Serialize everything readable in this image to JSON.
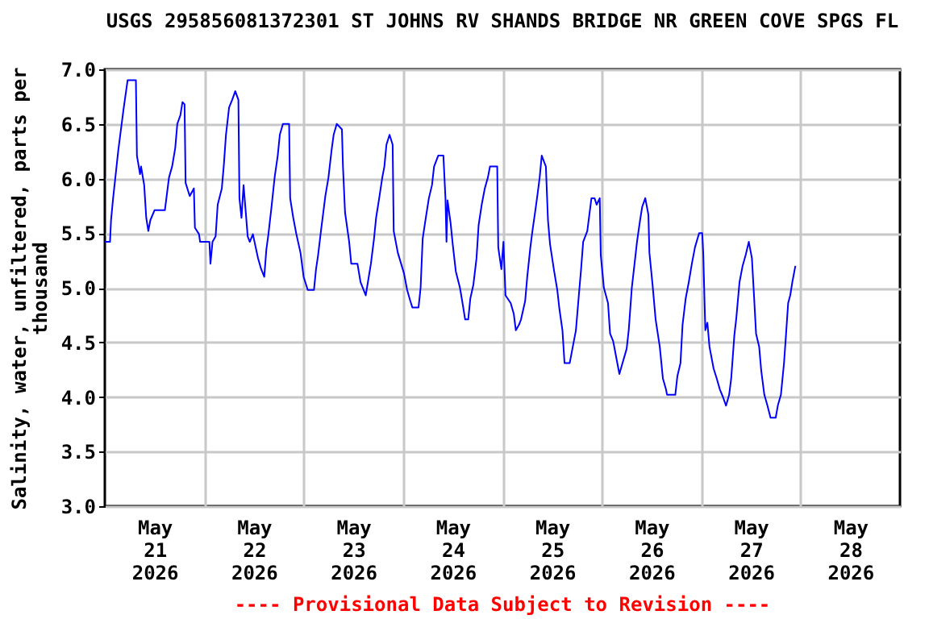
{
  "chart_data": {
    "type": "line",
    "title": "USGS 295856081372301 ST JOHNS RV SHANDS BRIDGE NR GREEN COVE SPGS FL",
    "ylabel": "Salinity, water, unfiltered, parts per thousand",
    "annotations": [
      "---- Provisional Data Subject to Revision ----"
    ],
    "x": [
      "2026-05-21T00:00",
      "2026-05-21T01:15",
      "2026-05-21T01:30",
      "2026-05-21T02:00",
      "2026-05-21T03:15",
      "2026-05-21T04:30",
      "2026-05-21T05:30",
      "2026-05-21T07:30",
      "2026-05-21T07:45",
      "2026-05-21T08:30",
      "2026-05-21T08:45",
      "2026-05-21T09:30",
      "2026-05-21T10:00",
      "2026-05-21T10:30",
      "2026-05-21T11:00",
      "2026-05-21T12:00",
      "2026-05-21T14:30",
      "2026-05-21T15:00",
      "2026-05-21T15:30",
      "2026-05-21T16:15",
      "2026-05-21T17:00",
      "2026-05-21T17:30",
      "2026-05-21T18:15",
      "2026-05-21T18:45",
      "2026-05-21T19:15",
      "2026-05-21T19:30",
      "2026-05-21T20:30",
      "2026-05-21T21:30",
      "2026-05-21T21:45",
      "2026-05-21T22:45",
      "2026-05-21T23:00",
      "2026-05-22T01:15",
      "2026-05-22T01:30",
      "2026-05-22T02:00",
      "2026-05-22T02:45",
      "2026-05-22T03:15",
      "2026-05-22T04:15",
      "2026-05-22T04:45",
      "2026-05-22T05:15",
      "2026-05-22T06:00",
      "2026-05-22T06:45",
      "2026-05-22T07:30",
      "2026-05-22T08:15",
      "2026-05-22T08:30",
      "2026-05-22T09:00",
      "2026-05-22T09:30",
      "2026-05-22T10:30",
      "2026-05-22T11:00",
      "2026-05-22T11:45",
      "2026-05-22T13:00",
      "2026-05-22T13:45",
      "2026-05-22T14:30",
      "2026-05-22T15:00",
      "2026-05-22T15:30",
      "2026-05-22T16:15",
      "2026-05-22T17:00",
      "2026-05-22T17:45",
      "2026-05-22T18:15",
      "2026-05-22T19:00",
      "2026-05-22T20:30",
      "2026-05-22T20:45",
      "2026-05-22T21:30",
      "2026-05-22T22:15",
      "2026-05-22T23:15",
      "2026-05-23T00:00",
      "2026-05-23T01:00",
      "2026-05-23T02:30",
      "2026-05-23T03:00",
      "2026-05-23T03:30",
      "2026-05-23T04:15",
      "2026-05-23T05:15",
      "2026-05-23T06:00",
      "2026-05-23T06:45",
      "2026-05-23T07:15",
      "2026-05-23T08:00",
      "2026-05-23T09:15",
      "2026-05-23T09:30",
      "2026-05-23T10:00",
      "2026-05-23T11:00",
      "2026-05-23T11:30",
      "2026-05-23T13:00",
      "2026-05-23T13:45",
      "2026-05-23T15:00",
      "2026-05-23T16:15",
      "2026-05-23T17:00",
      "2026-05-23T17:30",
      "2026-05-23T18:15",
      "2026-05-23T19:00",
      "2026-05-23T19:30",
      "2026-05-23T20:00",
      "2026-05-23T20:45",
      "2026-05-23T21:30",
      "2026-05-23T21:45",
      "2026-05-23T22:45",
      "2026-05-24T00:15",
      "2026-05-24T01:00",
      "2026-05-24T01:45",
      "2026-05-24T02:15",
      "2026-05-24T03:45",
      "2026-05-24T04:15",
      "2026-05-24T04:45",
      "2026-05-24T05:30",
      "2026-05-24T06:15",
      "2026-05-24T07:00",
      "2026-05-24T07:30",
      "2026-05-24T08:30",
      "2026-05-24T09:45",
      "2026-05-24T10:15",
      "2026-05-24T10:30",
      "2026-05-24T10:45",
      "2026-05-24T11:30",
      "2026-05-24T12:00",
      "2026-05-24T12:45",
      "2026-05-24T13:45",
      "2026-05-24T14:30",
      "2026-05-24T15:00",
      "2026-05-24T15:45",
      "2026-05-24T16:15",
      "2026-05-24T17:00",
      "2026-05-24T17:45",
      "2026-05-24T18:15",
      "2026-05-24T19:00",
      "2026-05-24T19:45",
      "2026-05-24T20:30",
      "2026-05-24T21:00",
      "2026-05-24T22:45",
      "2026-05-24T23:00",
      "2026-05-24T23:45",
      "2026-05-25T00:15",
      "2026-05-25T00:45",
      "2026-05-25T02:00",
      "2026-05-25T02:45",
      "2026-05-25T03:15",
      "2026-05-25T04:00",
      "2026-05-25T04:30",
      "2026-05-25T05:30",
      "2026-05-25T06:00",
      "2026-05-25T06:45",
      "2026-05-25T07:15",
      "2026-05-25T08:00",
      "2026-05-25T08:30",
      "2026-05-25T09:00",
      "2026-05-25T09:30",
      "2026-05-25T10:30",
      "2026-05-25T11:00",
      "2026-05-25T11:30",
      "2026-05-25T12:30",
      "2026-05-25T13:15",
      "2026-05-25T13:45",
      "2026-05-25T14:30",
      "2026-05-25T15:00",
      "2026-05-25T16:15",
      "2026-05-25T17:00",
      "2026-05-25T17:45",
      "2026-05-25T18:30",
      "2026-05-25T19:00",
      "2026-05-25T19:30",
      "2026-05-25T20:30",
      "2026-05-25T21:30",
      "2026-05-25T22:15",
      "2026-05-25T22:45",
      "2026-05-25T23:30",
      "2026-05-25T23:45",
      "2026-05-26T00:30",
      "2026-05-26T01:30",
      "2026-05-26T02:00",
      "2026-05-26T02:45",
      "2026-05-26T03:30",
      "2026-05-26T04:15",
      "2026-05-26T05:00",
      "2026-05-26T06:00",
      "2026-05-26T06:30",
      "2026-05-26T07:15",
      "2026-05-26T08:00",
      "2026-05-26T08:30",
      "2026-05-26T09:15",
      "2026-05-26T09:45",
      "2026-05-26T10:30",
      "2026-05-26T11:15",
      "2026-05-26T11:30",
      "2026-05-26T12:15",
      "2026-05-26T13:00",
      "2026-05-26T14:00",
      "2026-05-26T14:45",
      "2026-05-26T15:30",
      "2026-05-26T15:45",
      "2026-05-26T17:45",
      "2026-05-26T18:15",
      "2026-05-26T19:00",
      "2026-05-26T19:30",
      "2026-05-26T20:15",
      "2026-05-26T21:00",
      "2026-05-26T21:45",
      "2026-05-26T22:30",
      "2026-05-26T23:30",
      "2026-05-27T00:15",
      "2026-05-27T00:30",
      "2026-05-27T01:00",
      "2026-05-27T01:30",
      "2026-05-27T02:00",
      "2026-05-27T03:00",
      "2026-05-27T03:45",
      "2026-05-27T04:30",
      "2026-05-27T05:15",
      "2026-05-27T06:00",
      "2026-05-27T06:45",
      "2026-05-27T07:15",
      "2026-05-27T08:00",
      "2026-05-27T08:30",
      "2026-05-27T09:15",
      "2026-05-27T10:00",
      "2026-05-27T10:45",
      "2026-05-27T11:30",
      "2026-05-27T12:15",
      "2026-05-27T12:45",
      "2026-05-27T13:15",
      "2026-05-27T14:00",
      "2026-05-27T14:30",
      "2026-05-27T15:15",
      "2026-05-27T16:00",
      "2026-05-27T16:45",
      "2026-05-27T18:00",
      "2026-05-27T18:30",
      "2026-05-27T19:15",
      "2026-05-27T20:00",
      "2026-05-27T20:30",
      "2026-05-27T21:00",
      "2026-05-27T21:30",
      "2026-05-27T22:00",
      "2026-05-27T22:45"
    ],
    "series": [
      {
        "color": "#0000ff",
        "values": [
          5.42,
          5.42,
          5.62,
          5.82,
          6.26,
          6.63,
          6.9,
          6.9,
          6.21,
          6.04,
          6.11,
          5.94,
          5.64,
          5.52,
          5.62,
          5.71,
          5.71,
          5.86,
          6.01,
          6.11,
          6.28,
          6.5,
          6.58,
          6.7,
          6.68,
          5.96,
          5.84,
          5.91,
          5.55,
          5.49,
          5.42,
          5.42,
          5.22,
          5.42,
          5.47,
          5.76,
          5.91,
          6.13,
          6.4,
          6.65,
          6.72,
          6.8,
          6.72,
          5.82,
          5.64,
          5.94,
          5.47,
          5.42,
          5.49,
          5.27,
          5.17,
          5.1,
          5.35,
          5.49,
          5.74,
          6.01,
          6.21,
          6.4,
          6.5,
          6.5,
          5.82,
          5.64,
          5.49,
          5.32,
          5.1,
          4.98,
          4.98,
          5.17,
          5.3,
          5.54,
          5.84,
          6.01,
          6.26,
          6.4,
          6.5,
          6.45,
          6.11,
          5.69,
          5.42,
          5.22,
          5.22,
          5.05,
          4.93,
          5.22,
          5.45,
          5.64,
          5.82,
          6.01,
          6.11,
          6.31,
          6.4,
          6.31,
          5.52,
          5.32,
          5.13,
          4.98,
          4.88,
          4.82,
          4.82,
          5.0,
          5.45,
          5.64,
          5.82,
          5.94,
          6.11,
          6.21,
          6.21,
          5.82,
          5.42,
          5.8,
          5.59,
          5.4,
          5.15,
          5.0,
          4.83,
          4.71,
          4.71,
          4.9,
          5.03,
          5.27,
          5.57,
          5.76,
          5.91,
          6.01,
          6.11,
          6.11,
          5.37,
          5.17,
          5.42,
          4.93,
          4.86,
          4.76,
          4.61,
          4.66,
          4.71,
          4.88,
          5.1,
          5.37,
          5.52,
          5.72,
          5.86,
          6.01,
          6.21,
          6.11,
          5.62,
          5.4,
          5.15,
          4.98,
          4.81,
          4.61,
          4.31,
          4.31,
          4.46,
          4.61,
          4.95,
          5.17,
          5.42,
          5.52,
          5.82,
          5.82,
          5.76,
          5.82,
          5.3,
          5.0,
          4.86,
          4.58,
          4.51,
          4.36,
          4.21,
          4.31,
          4.44,
          4.61,
          5.0,
          5.25,
          5.42,
          5.62,
          5.74,
          5.82,
          5.67,
          5.32,
          5.03,
          4.71,
          4.46,
          4.17,
          4.07,
          4.02,
          4.02,
          4.19,
          4.31,
          4.66,
          4.9,
          5.05,
          5.22,
          5.37,
          5.5,
          5.5,
          5.31,
          4.61,
          4.68,
          4.46,
          4.26,
          4.17,
          4.07,
          4.0,
          3.92,
          4.02,
          4.17,
          4.56,
          4.73,
          5.05,
          5.2,
          5.3,
          5.42,
          5.27,
          4.93,
          4.58,
          4.46,
          4.24,
          4.02,
          3.92,
          3.81,
          3.81,
          3.92,
          4.02,
          4.31,
          4.58,
          4.86,
          4.93,
          5.05,
          5.2
        ]
      }
    ],
    "xlim": [
      "2026-05-21T00:00",
      "2026-05-29T00:00"
    ],
    "xticks": [
      {
        "value": "2026-05-21T12:00",
        "label": "May 21 2026"
      },
      {
        "value": "2026-05-22T12:00",
        "label": "May 22 2026"
      },
      {
        "value": "2026-05-23T12:00",
        "label": "May 23 2026"
      },
      {
        "value": "2026-05-24T12:00",
        "label": "May 24 2026"
      },
      {
        "value": "2026-05-25T12:00",
        "label": "May 25 2026"
      },
      {
        "value": "2026-05-26T12:00",
        "label": "May 26 2026"
      },
      {
        "value": "2026-05-27T12:00",
        "label": "May 27 2026"
      },
      {
        "value": "2026-05-28T12:00",
        "label": "May 28 2026"
      },
      {
        "value": "2026-05-22T00:00",
        "label": null
      },
      {
        "value": "2026-05-23T00:00",
        "label": null
      },
      {
        "value": "2026-05-24T00:00",
        "label": null
      },
      {
        "value": "2026-05-25T00:00",
        "label": null
      },
      {
        "value": "2026-05-26T00:00",
        "label": null
      },
      {
        "value": "2026-05-27T00:00",
        "label": null
      },
      {
        "value": "2026-05-28T00:00",
        "label": null
      }
    ],
    "ylim": [
      3,
      7
    ],
    "yticks": [
      {
        "value": 3,
        "label": "3.0"
      },
      {
        "value": 3.5,
        "label": "3.5"
      },
      {
        "value": 4,
        "label": "4.0"
      },
      {
        "value": 4.5,
        "label": "4.5"
      },
      {
        "value": 5,
        "label": "5.0"
      },
      {
        "value": 5.5,
        "label": "5.5"
      },
      {
        "value": 6,
        "label": "6.0"
      },
      {
        "value": 6.5,
        "label": "6.5"
      },
      {
        "value": 7,
        "label": "7.0"
      }
    ],
    "grid": true
  }
}
